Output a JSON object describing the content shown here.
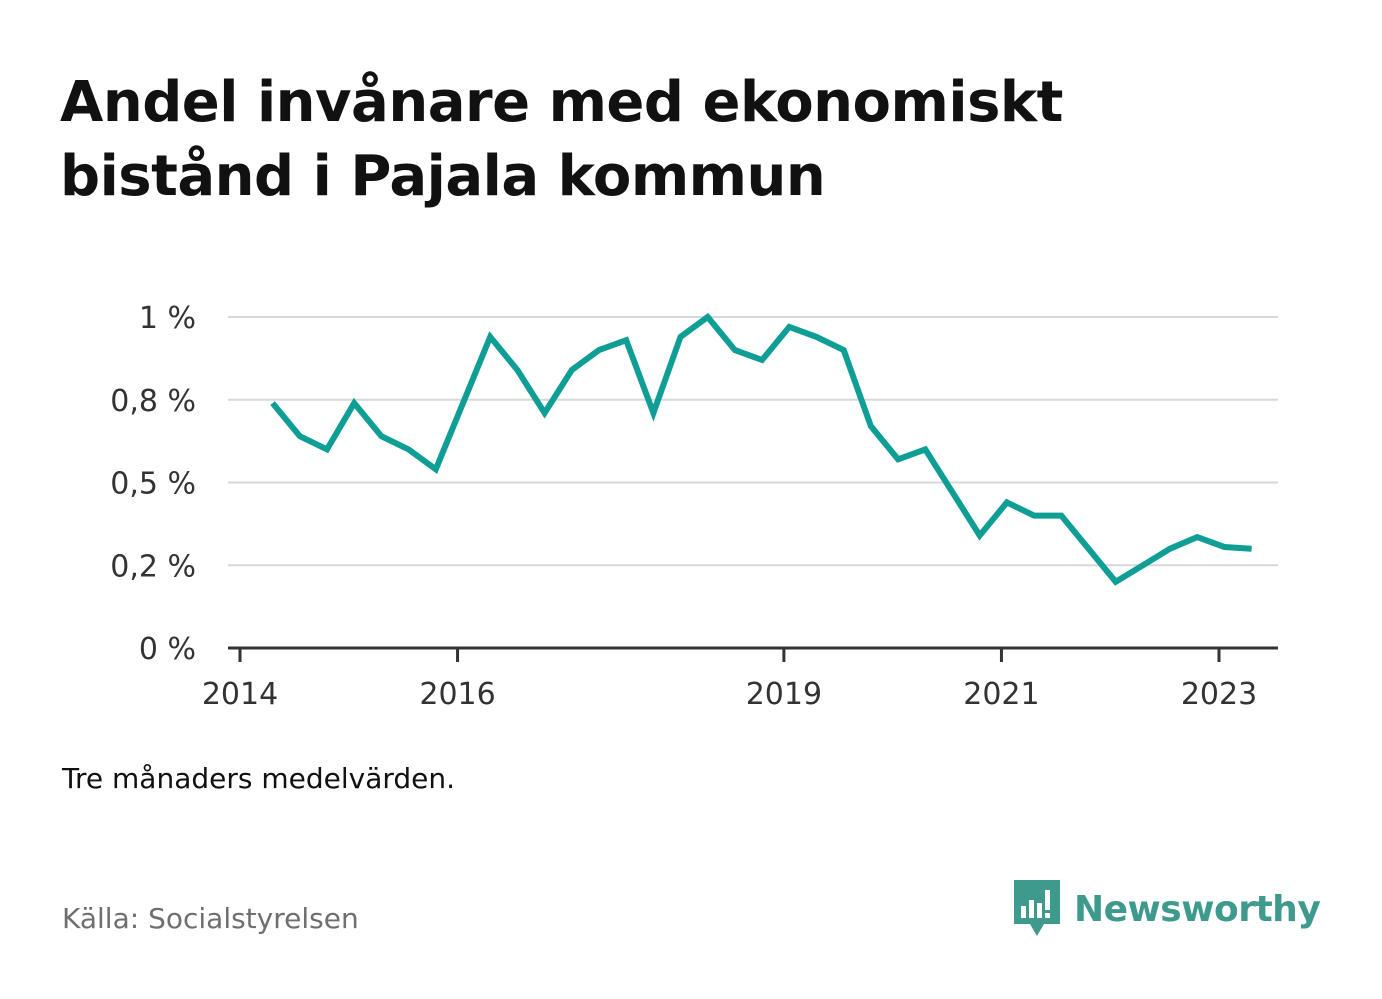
{
  "title_line1": "Andel invånare med ekonomiskt",
  "title_line2": "bistånd i Pajala kommun",
  "note": "Tre månaders medelvärden.",
  "source": "Källa: Socialstyrelsen",
  "brand": "Newsworthy",
  "colors": {
    "line": "#0f9e96",
    "grid": "#d8d8d8",
    "axis": "#333333",
    "brand": "#3e9a8c"
  },
  "chart_data": {
    "type": "line",
    "title": "Andel invånare med ekonomiskt bistånd i Pajala kommun",
    "xlabel": "",
    "ylabel": "",
    "grid": true,
    "y_ticks": [
      {
        "value": 0,
        "label": "0 %"
      },
      {
        "value": 0.25,
        "label": "0,2 %"
      },
      {
        "value": 0.5,
        "label": "0,5 %"
      },
      {
        "value": 0.75,
        "label": "0,8 %"
      },
      {
        "value": 1.0,
        "label": "1 %"
      }
    ],
    "ylim": [
      0,
      1.0
    ],
    "x_ticks": [
      {
        "value": 2014.0,
        "label": "2014"
      },
      {
        "value": 2016.0,
        "label": "2016"
      },
      {
        "value": 2019.0,
        "label": "2019"
      },
      {
        "value": 2021.0,
        "label": "2021"
      },
      {
        "value": 2023.0,
        "label": "2023"
      }
    ],
    "xlim": [
      2013.9,
      2023.55
    ],
    "series": [
      {
        "x": [
          2014.3,
          2014.55,
          2014.8,
          2015.05,
          2015.3,
          2015.55,
          2015.8,
          2016.05,
          2016.3,
          2016.55,
          2016.8,
          2017.05,
          2017.3,
          2017.55,
          2017.8,
          2018.05,
          2018.3,
          2018.55,
          2018.8,
          2019.05,
          2019.3,
          2019.55,
          2019.8,
          2020.05,
          2020.3,
          2020.55,
          2020.8,
          2021.05,
          2021.3,
          2021.55,
          2021.8,
          2022.05,
          2022.3,
          2022.55,
          2022.8,
          2023.05,
          2023.3
        ],
        "values": [
          0.74,
          0.64,
          0.6,
          0.74,
          0.64,
          0.6,
          0.54,
          0.74,
          0.94,
          0.84,
          0.71,
          0.84,
          0.9,
          0.93,
          0.71,
          0.94,
          1.0,
          0.9,
          0.87,
          0.97,
          0.94,
          0.9,
          0.67,
          0.57,
          0.6,
          0.47,
          0.34,
          0.44,
          0.4,
          0.4,
          0.3,
          0.2,
          0.25,
          0.3,
          0.335,
          0.305,
          0.3
        ]
      }
    ]
  }
}
